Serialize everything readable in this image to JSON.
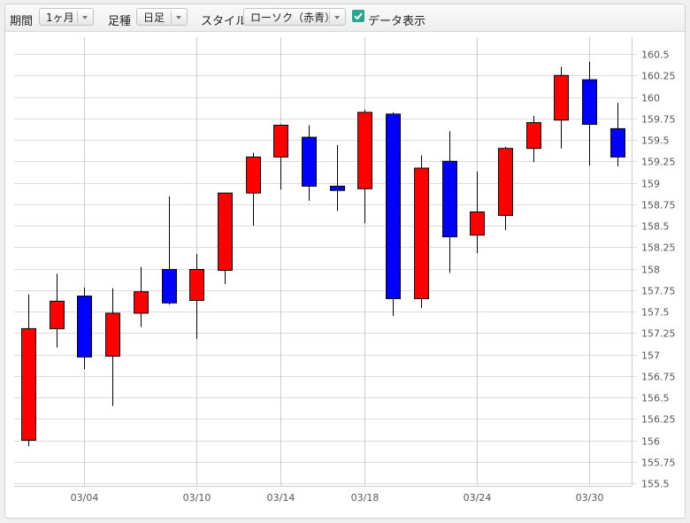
{
  "toolbar": {
    "period_label": "期間",
    "period_value": "1ヶ月",
    "interval_label": "足種",
    "interval_value": "日足",
    "style_label": "スタイル",
    "style_value": "ローソク（赤青）",
    "show_data_label": "データ表示",
    "show_data_checked": true
  },
  "colors": {
    "up": "#ff0000",
    "down": "#0000ff",
    "wick": "#000000",
    "grid": "#cccccc",
    "axis_text": "#555555"
  },
  "chart_data": {
    "type": "candlestick",
    "x_tick_labels": [
      "03/04",
      "03/10",
      "03/14",
      "03/18",
      "03/24",
      "03/30"
    ],
    "x_tick_candle_index": [
      2,
      6,
      9,
      12,
      16,
      20
    ],
    "ylim": [
      155.4,
      160.75
    ],
    "y_ticks": [
      155.5,
      155.75,
      156,
      156.25,
      156.5,
      156.75,
      157,
      157.25,
      157.5,
      157.75,
      158,
      158.25,
      158.5,
      158.75,
      159,
      159.25,
      159.5,
      159.75,
      160,
      160.25,
      160.5
    ],
    "y_tick_labels": [
      "155.5",
      "155.75",
      "156",
      "156.25",
      "156.5",
      "156.75",
      "157",
      "157.25",
      "157.5",
      "157.75",
      "158",
      "158.25",
      "158.5",
      "158.75",
      "159",
      "159.25",
      "159.5",
      "159.75",
      "160",
      "160.25",
      "160.5"
    ],
    "grid": true,
    "candles": [
      {
        "open": 156.0,
        "high": 157.7,
        "low": 155.93,
        "close": 157.3
      },
      {
        "open": 157.3,
        "high": 157.94,
        "low": 157.08,
        "close": 157.62
      },
      {
        "open": 157.68,
        "high": 157.78,
        "low": 156.83,
        "close": 156.97
      },
      {
        "open": 156.98,
        "high": 157.77,
        "low": 156.4,
        "close": 157.48
      },
      {
        "open": 157.48,
        "high": 158.02,
        "low": 157.32,
        "close": 157.73
      },
      {
        "open": 157.99,
        "high": 158.84,
        "low": 157.58,
        "close": 157.6
      },
      {
        "open": 157.63,
        "high": 158.17,
        "low": 157.18,
        "close": 157.99
      },
      {
        "open": 157.98,
        "high": 158.88,
        "low": 157.82,
        "close": 158.88
      },
      {
        "open": 158.88,
        "high": 159.35,
        "low": 158.5,
        "close": 159.3
      },
      {
        "open": 159.3,
        "high": 159.68,
        "low": 158.92,
        "close": 159.67
      },
      {
        "open": 159.53,
        "high": 159.67,
        "low": 158.79,
        "close": 158.96
      },
      {
        "open": 158.96,
        "high": 159.44,
        "low": 158.67,
        "close": 158.91
      },
      {
        "open": 158.93,
        "high": 159.85,
        "low": 158.53,
        "close": 159.82
      },
      {
        "open": 159.8,
        "high": 159.82,
        "low": 157.45,
        "close": 157.65
      },
      {
        "open": 157.65,
        "high": 159.32,
        "low": 157.54,
        "close": 159.17
      },
      {
        "open": 159.25,
        "high": 159.6,
        "low": 157.95,
        "close": 158.37
      },
      {
        "open": 158.39,
        "high": 159.13,
        "low": 158.18,
        "close": 158.66
      },
      {
        "open": 158.62,
        "high": 159.42,
        "low": 158.45,
        "close": 159.4
      },
      {
        "open": 159.4,
        "high": 159.78,
        "low": 159.24,
        "close": 159.7
      },
      {
        "open": 159.73,
        "high": 160.35,
        "low": 159.4,
        "close": 160.25
      },
      {
        "open": 160.2,
        "high": 160.41,
        "low": 159.2,
        "close": 159.68
      },
      {
        "open": 159.63,
        "high": 159.93,
        "low": 159.19,
        "close": 159.3
      }
    ]
  }
}
